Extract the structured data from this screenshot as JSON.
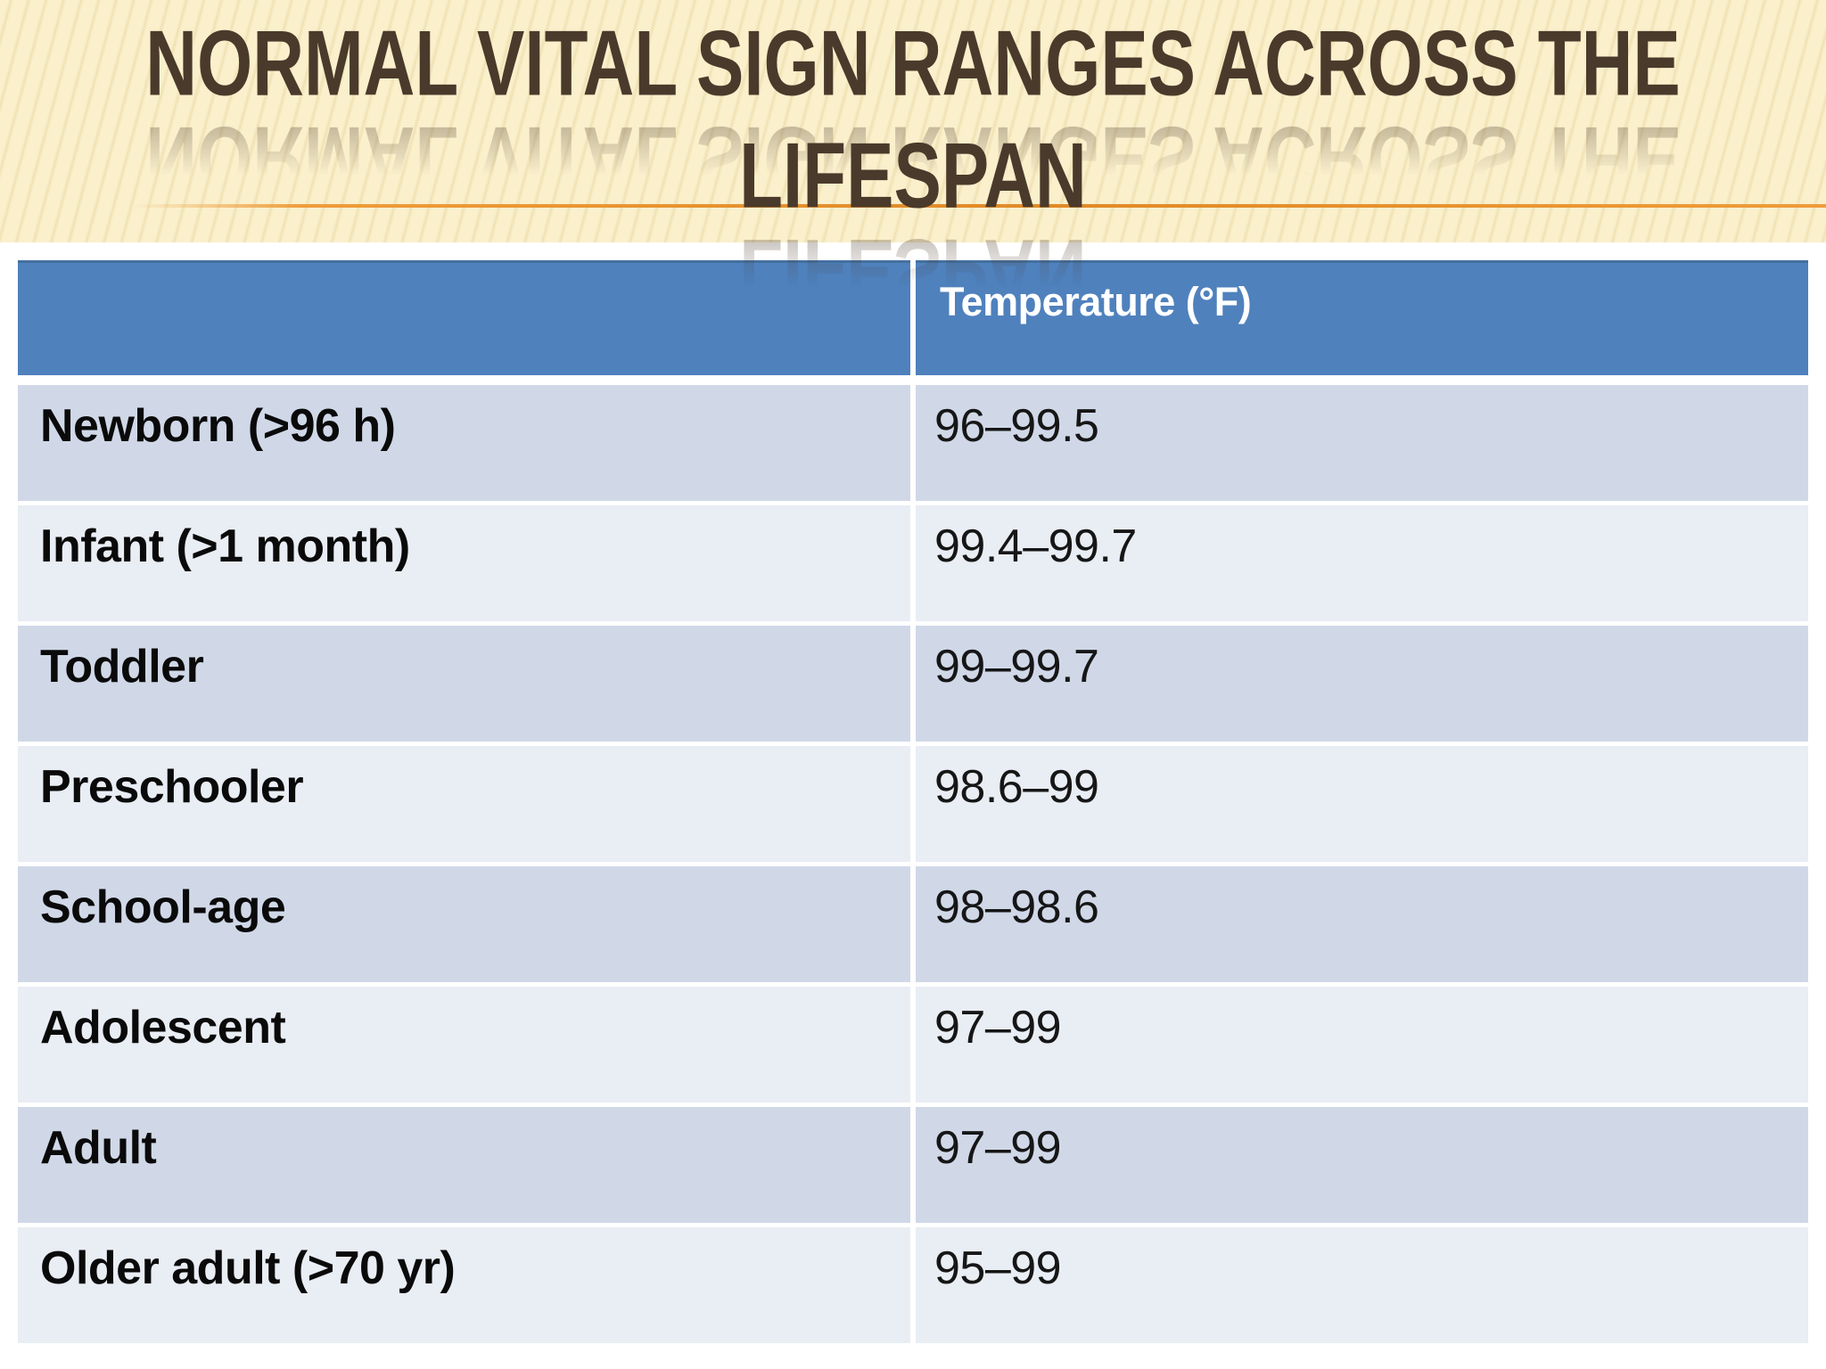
{
  "title": {
    "line1": "NORMAL VITAL SIGN RANGES ACROSS THE",
    "line2": "LIFESPAN"
  },
  "table": {
    "header": {
      "col1": "",
      "col2": "Temperature (°F)"
    },
    "rows": [
      {
        "label": "Newborn (>96 h)",
        "value": "96–99.5"
      },
      {
        "label": "Infant (>1 month)",
        "value": "99.4–99.7"
      },
      {
        "label": "Toddler",
        "value": "99–99.7"
      },
      {
        "label": "Preschooler",
        "value": "98.6–99"
      },
      {
        "label": "School-age",
        "value": "98–98.6"
      },
      {
        "label": "Adolescent",
        "value": "97–99"
      },
      {
        "label": "Adult",
        "value": "97–99"
      },
      {
        "label": "Older adult (>70 yr)",
        "value": "95–99"
      }
    ]
  },
  "colors": {
    "header_bg": "#4F81BD",
    "band_dark": "#D0D8E8",
    "band_light": "#E9EDF4",
    "title_text": "#4A3A2B",
    "accent_line": "#EE9D3C",
    "title_band_bg": "#FAF0CC",
    "header_text": "#FFFFFF",
    "body_text": "#0A0A0A"
  }
}
